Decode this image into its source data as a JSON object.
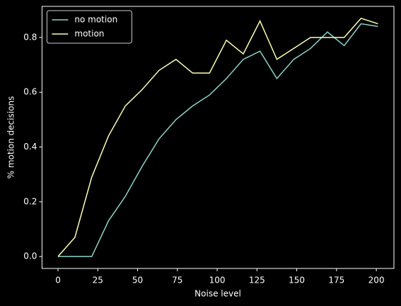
{
  "chart_data": {
    "type": "line",
    "x_label": "Noise level",
    "y_label": "% motion decisions",
    "x": [
      0,
      10.6,
      21.2,
      31.7,
      42.3,
      52.9,
      63.5,
      74.1,
      84.6,
      95.2,
      105.8,
      116.4,
      126.9,
      137.5,
      148.1,
      158.7,
      169.3,
      179.8,
      190.4,
      201
    ],
    "series": [
      {
        "name": "no motion",
        "color": "#8dd3c7",
        "values": [
          0,
          0,
          0,
          0.13,
          0.22,
          0.33,
          0.43,
          0.5,
          0.55,
          0.59,
          0.65,
          0.72,
          0.75,
          0.65,
          0.72,
          0.76,
          0.82,
          0.77,
          0.85,
          0.84
        ]
      },
      {
        "name": "motion",
        "color": "#feffb3",
        "values": [
          0,
          0.07,
          0.29,
          0.44,
          0.55,
          0.61,
          0.68,
          0.72,
          0.67,
          0.67,
          0.79,
          0.74,
          0.86,
          0.72,
          0.76,
          0.8,
          0.8,
          0.8,
          0.87,
          0.85
        ]
      }
    ],
    "xlim": [
      -10.05,
      211.05
    ],
    "xticks": [
      0,
      25,
      50,
      75,
      100,
      125,
      150,
      175,
      200
    ],
    "ylim": [
      -0.0435,
      0.9135
    ],
    "yticks": [
      {
        "value": 0,
        "label": "0.0"
      },
      {
        "value": 0.2,
        "label": "0.2"
      },
      {
        "value": 0.4,
        "label": "0.4"
      },
      {
        "value": 0.6,
        "label": "0.6"
      },
      {
        "value": 0.8,
        "label": "0.8"
      }
    ],
    "legend": "upper left"
  }
}
